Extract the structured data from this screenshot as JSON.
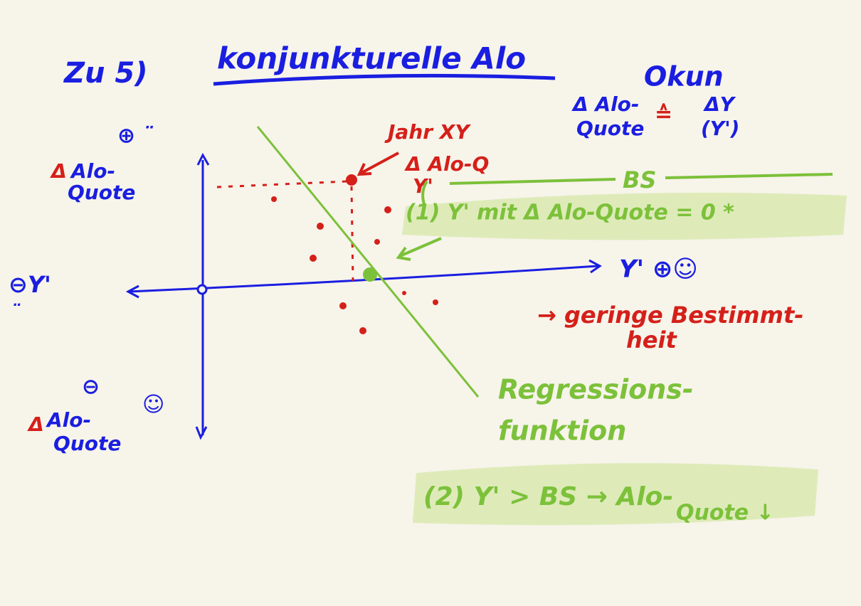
{
  "header": {
    "section": "Zu 5)",
    "title": "konjunkturelle Alo",
    "law": "Okun"
  },
  "okun": {
    "lhs1": "Δ Alo-",
    "lhs2": "Quote",
    "eq": "≙",
    "rhs1": "ΔY",
    "rhs2": "(Y')"
  },
  "axes": {
    "top_sign": "⊕ ¨",
    "top_delta": "Δ",
    "top_label1": "Alo-",
    "top_label2": "Quote",
    "left": "⊖Y'",
    "left_face": "¨",
    "right": "Y' ⊕☺",
    "bottom_sign": "⊖",
    "bottom_face": "☺",
    "bottom_delta": "Δ",
    "bottom_label1": "Alo-",
    "bottom_label2": "Quote"
  },
  "point": {
    "line1": "Jahr XY",
    "line2": "Δ Alo-Q",
    "line3": "Y'"
  },
  "bs": {
    "label": "BS",
    "note1": "(1) Y' mit Δ Alo-Quote = 0 *"
  },
  "fit": {
    "line1": "→ geringe Bestimmt-",
    "line2": "heit"
  },
  "regression": {
    "line1": "Regressions-",
    "line2": "funktion"
  },
  "note2": {
    "line1": "(2) Y' > BS → Alo-",
    "line2": "Quote ↓"
  }
}
